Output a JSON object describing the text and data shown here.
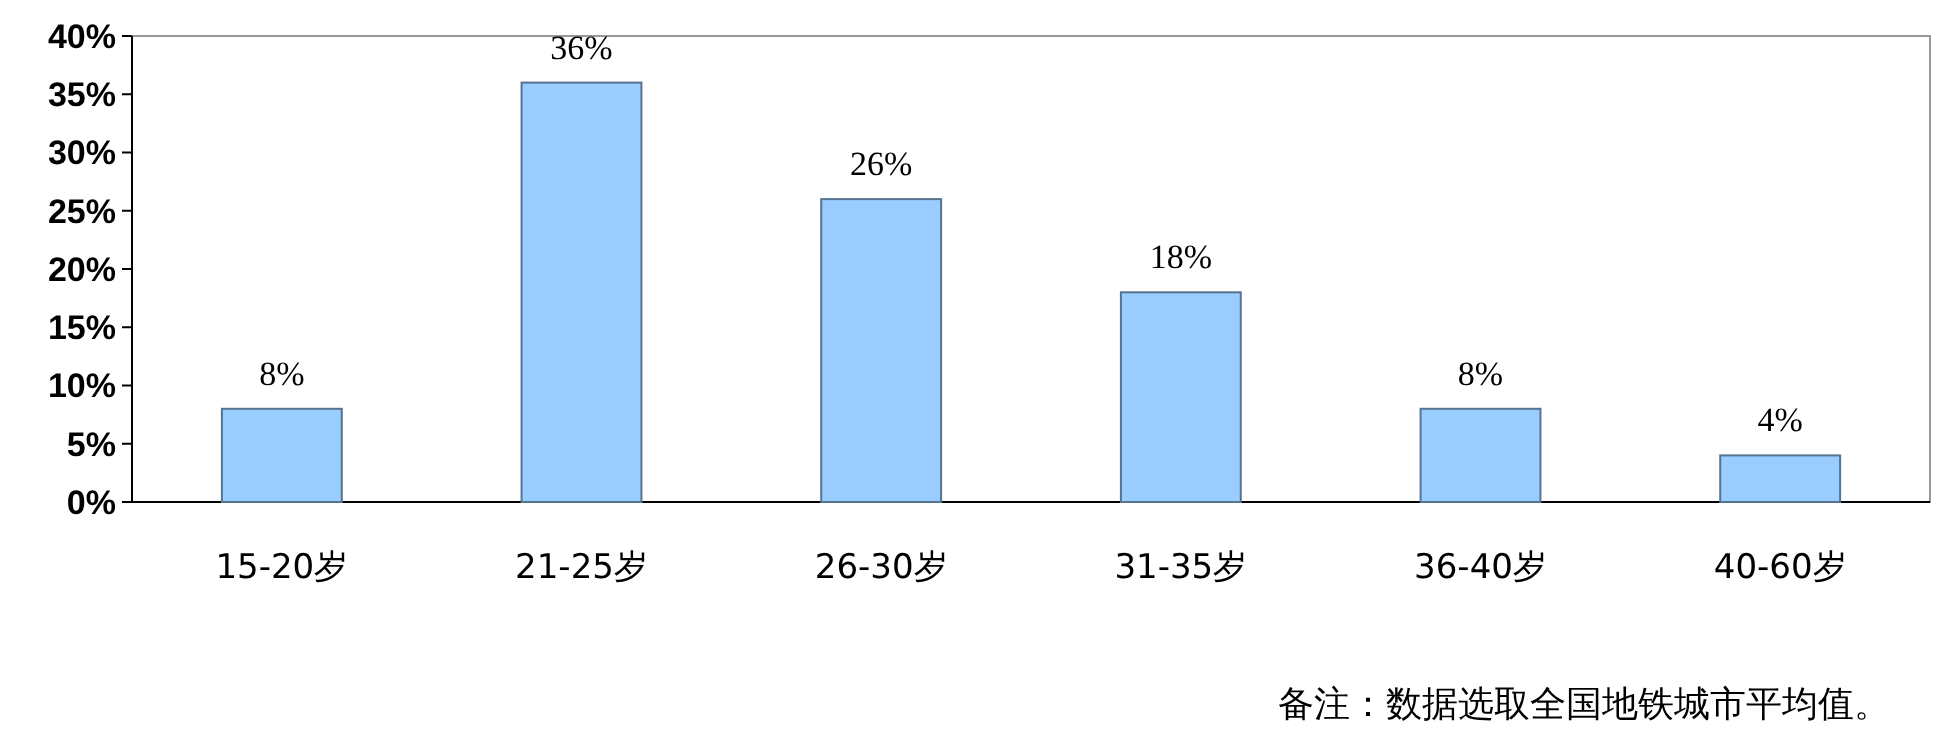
{
  "chart_data": {
    "type": "bar",
    "categories": [
      "15-20岁",
      "21-25岁",
      "26-30岁",
      "31-35岁",
      "36-40岁",
      "40-60岁"
    ],
    "values": [
      8,
      36,
      26,
      18,
      8,
      4
    ],
    "value_labels": [
      "8%",
      "36%",
      "26%",
      "18%",
      "8%",
      "4%"
    ],
    "color": "#99ccff",
    "ylim": [
      0,
      40
    ],
    "yticks": [
      {
        "value": 0,
        "label": "0%"
      },
      {
        "value": 5,
        "label": "5%"
      },
      {
        "value": 10,
        "label": "10%"
      },
      {
        "value": 15,
        "label": "15%"
      },
      {
        "value": 20,
        "label": "20%"
      },
      {
        "value": 25,
        "label": "25%"
      },
      {
        "value": 30,
        "label": "30%"
      },
      {
        "value": 35,
        "label": "35%"
      },
      {
        "value": 40,
        "label": "40%"
      }
    ],
    "grid": false,
    "annotations": [
      "备注：数据选取全国地铁城市平均值。"
    ]
  }
}
